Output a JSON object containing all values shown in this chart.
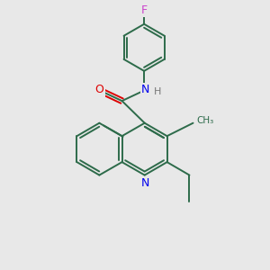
{
  "background_color": "#e8e8e8",
  "bond_color": "#2d6b4a",
  "N_color": "#0000ee",
  "O_color": "#dd0000",
  "F_color": "#cc44cc",
  "H_color": "#777777",
  "figsize": [
    3.0,
    3.0
  ],
  "dpi": 100,
  "lw": 1.4,
  "xlim": [
    0,
    10
  ],
  "ylim": [
    0,
    10
  ]
}
